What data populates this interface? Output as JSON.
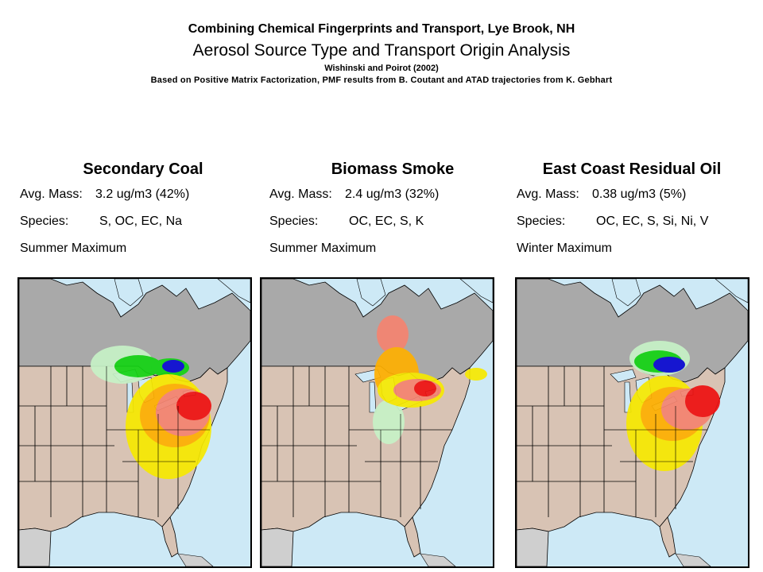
{
  "header": {
    "line1": "Combining Chemical Fingerprints and Transport, Lye Brook, NH",
    "line2": "Aerosol Source Type and Transport Origin Analysis",
    "line3": "Wishinski and Poirot (2002)",
    "line4": "Based on Positive Matrix Factorization, PMF results from B. Coutant and ATAD trajectories from K. Gebhart"
  },
  "panels": [
    {
      "title": "Secondary Coal",
      "mass_label": "Avg. Mass:",
      "mass_value": "3.2 ug/m3 (42%)",
      "species_label": "Species:",
      "species_value": "S, OC, EC, Na",
      "season": "Summer Maximum"
    },
    {
      "title": "Biomass Smoke",
      "mass_label": "Avg. Mass:",
      "mass_value": "2.4 ug/m3 (32%)",
      "species_label": "Species:",
      "species_value": "OC, EC, S, K",
      "season": "Summer Maximum"
    },
    {
      "title": "East Coast Residual Oil",
      "mass_label": "Avg. Mass:",
      "mass_value": "0.38 ug/m3 (5%)",
      "species_label": "Species:",
      "species_value": "OC, EC, S, Si, Ni, V",
      "season": "Winter Maximum"
    }
  ],
  "colors": {
    "water": "#cde9f6",
    "canada": "#a9a9a9",
    "usa": "#d8c3b4",
    "mexico": "#cfcfcf",
    "border": "#000000",
    "light_green": "#c7f2c7",
    "green": "#14d414",
    "blue": "#0a0ad4",
    "yellow": "#f7e900",
    "orange": "#ffb000",
    "salmon": "#f58470",
    "red": "#ee1111"
  }
}
